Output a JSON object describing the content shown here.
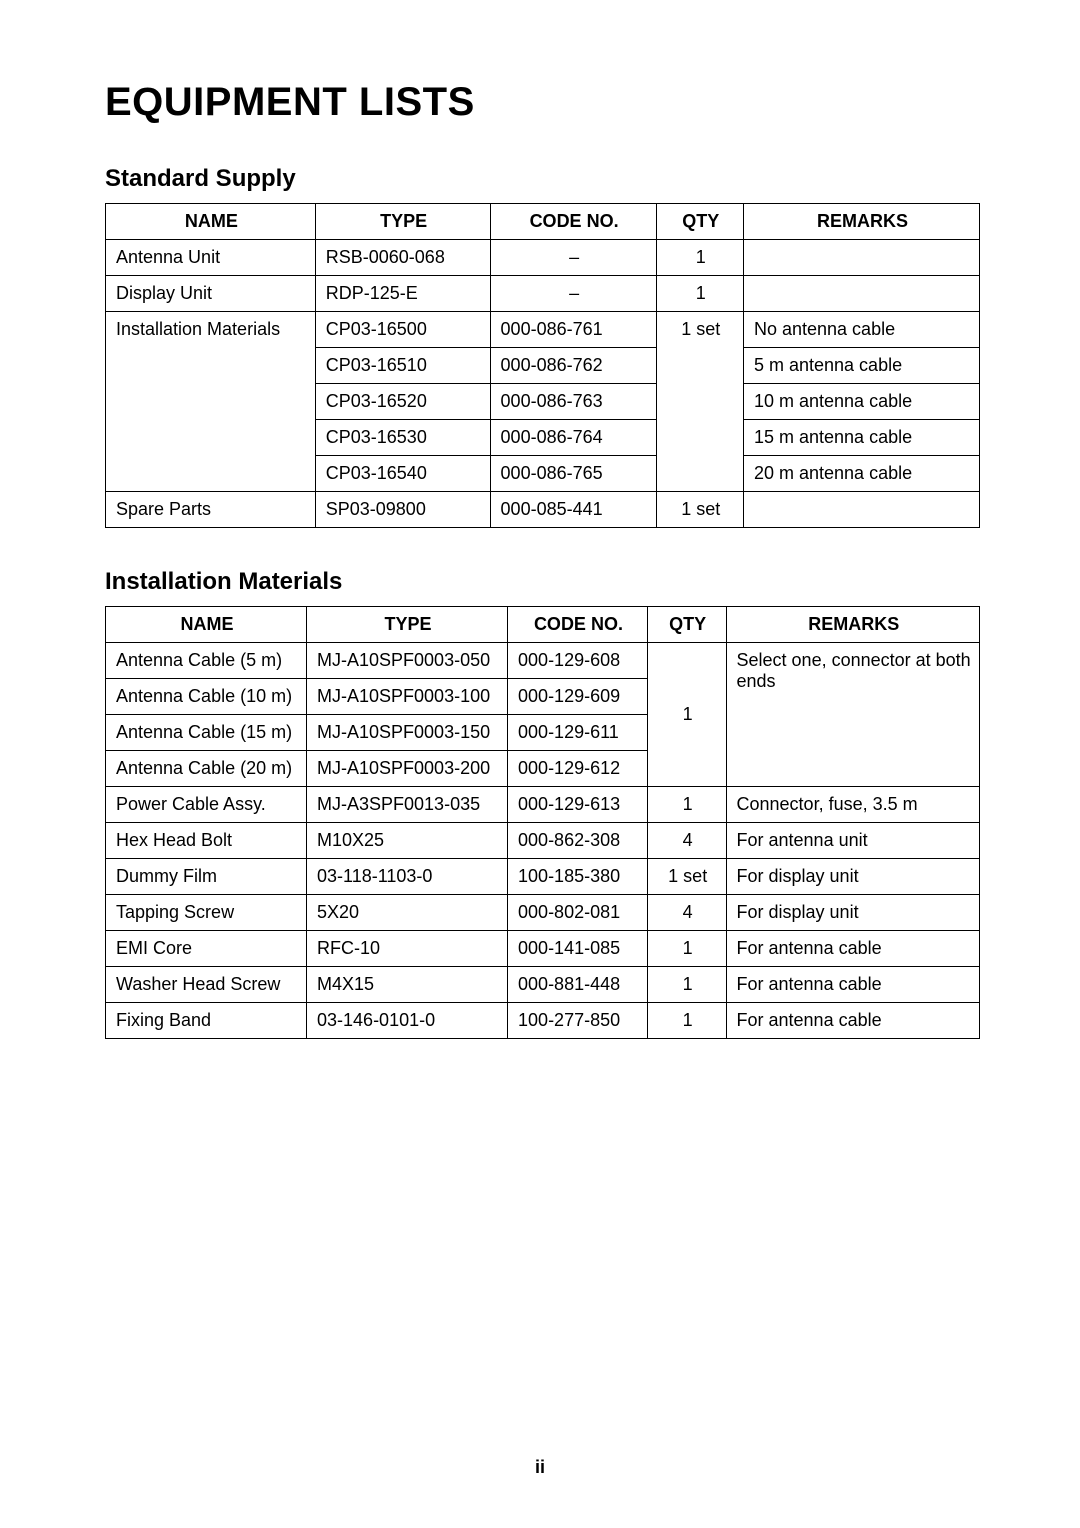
{
  "title": "EQUIPMENT LISTS",
  "page_number": "ii",
  "section1": {
    "heading": "Standard Supply",
    "columns": {
      "name": "Name",
      "type": "Type",
      "code": "Code No.",
      "qty": "Qty",
      "remarks": "Remarks"
    },
    "rows": {
      "r0": {
        "name": "Antenna Unit",
        "type": "RSB-0060-068",
        "code": "–",
        "qty": "1",
        "remarks": ""
      },
      "r1": {
        "name": "Display Unit",
        "type": "RDP-125-E",
        "code": "–",
        "qty": "1",
        "remarks": ""
      },
      "r2": {
        "name": "Installation Materials",
        "type": "CP03-16500",
        "code": "000-086-761",
        "qty": "1 set",
        "remarks": "No antenna cable"
      },
      "r3": {
        "type": "CP03-16510",
        "code": "000-086-762",
        "remarks": "5 m antenna cable"
      },
      "r4": {
        "type": "CP03-16520",
        "code": "000-086-763",
        "remarks": "10 m antenna cable"
      },
      "r5": {
        "type": "CP03-16530",
        "code": "000-086-764",
        "remarks": "15 m antenna cable"
      },
      "r6": {
        "type": "CP03-16540",
        "code": "000-086-765",
        "remarks": "20 m antenna cable"
      },
      "r7": {
        "name": "Spare Parts",
        "type": "SP03-09800",
        "code": "000-085-441",
        "qty": "1 set",
        "remarks": ""
      }
    }
  },
  "section2": {
    "heading": "Installation Materials",
    "columns": {
      "name": "Name",
      "type": "Type",
      "code": "Code No.",
      "qty": "Qty",
      "remarks": "Remarks"
    },
    "rows": {
      "r0": {
        "name": "Antenna Cable (5 m)",
        "type": "MJ-A10SPF0003-050",
        "code": "000-129-608",
        "qty": "1",
        "remarks": "Select one, connector at both ends"
      },
      "r1": {
        "name": "Antenna Cable (10 m)",
        "type": "MJ-A10SPF0003-100",
        "code": "000-129-609"
      },
      "r2": {
        "name": "Antenna Cable (15 m)",
        "type": "MJ-A10SPF0003-150",
        "code": "000-129-611"
      },
      "r3": {
        "name": "Antenna Cable (20 m)",
        "type": "MJ-A10SPF0003-200",
        "code": "000-129-612"
      },
      "r4": {
        "name": "Power Cable Assy.",
        "type": "MJ-A3SPF0013-035",
        "code": "000-129-613",
        "qty": "1",
        "remarks": "Connector, fuse, 3.5 m"
      },
      "r5": {
        "name": "Hex Head Bolt",
        "type": "M10X25",
        "code": "000-862-308",
        "qty": "4",
        "remarks": "For antenna unit"
      },
      "r6": {
        "name": "Dummy Film",
        "type": "03-118-1103-0",
        "code": "100-185-380",
        "qty": "1 set",
        "remarks": "For display unit"
      },
      "r7": {
        "name": "Tapping Screw",
        "type": "5X20",
        "code": "000-802-081",
        "qty": "4",
        "remarks": "For display unit"
      },
      "r8": {
        "name": "EMI Core",
        "type": "RFC-10",
        "code": "000-141-085",
        "qty": "1",
        "remarks": "For antenna cable"
      },
      "r9": {
        "name": "Washer Head Screw",
        "type": "M4X15",
        "code": "000-881-448",
        "qty": "1",
        "remarks": "For antenna cable"
      },
      "r10": {
        "name": "Fixing Band",
        "type": "03-146-0101-0",
        "code": "100-277-850",
        "qty": "1",
        "remarks": "For antenna cable"
      }
    }
  }
}
